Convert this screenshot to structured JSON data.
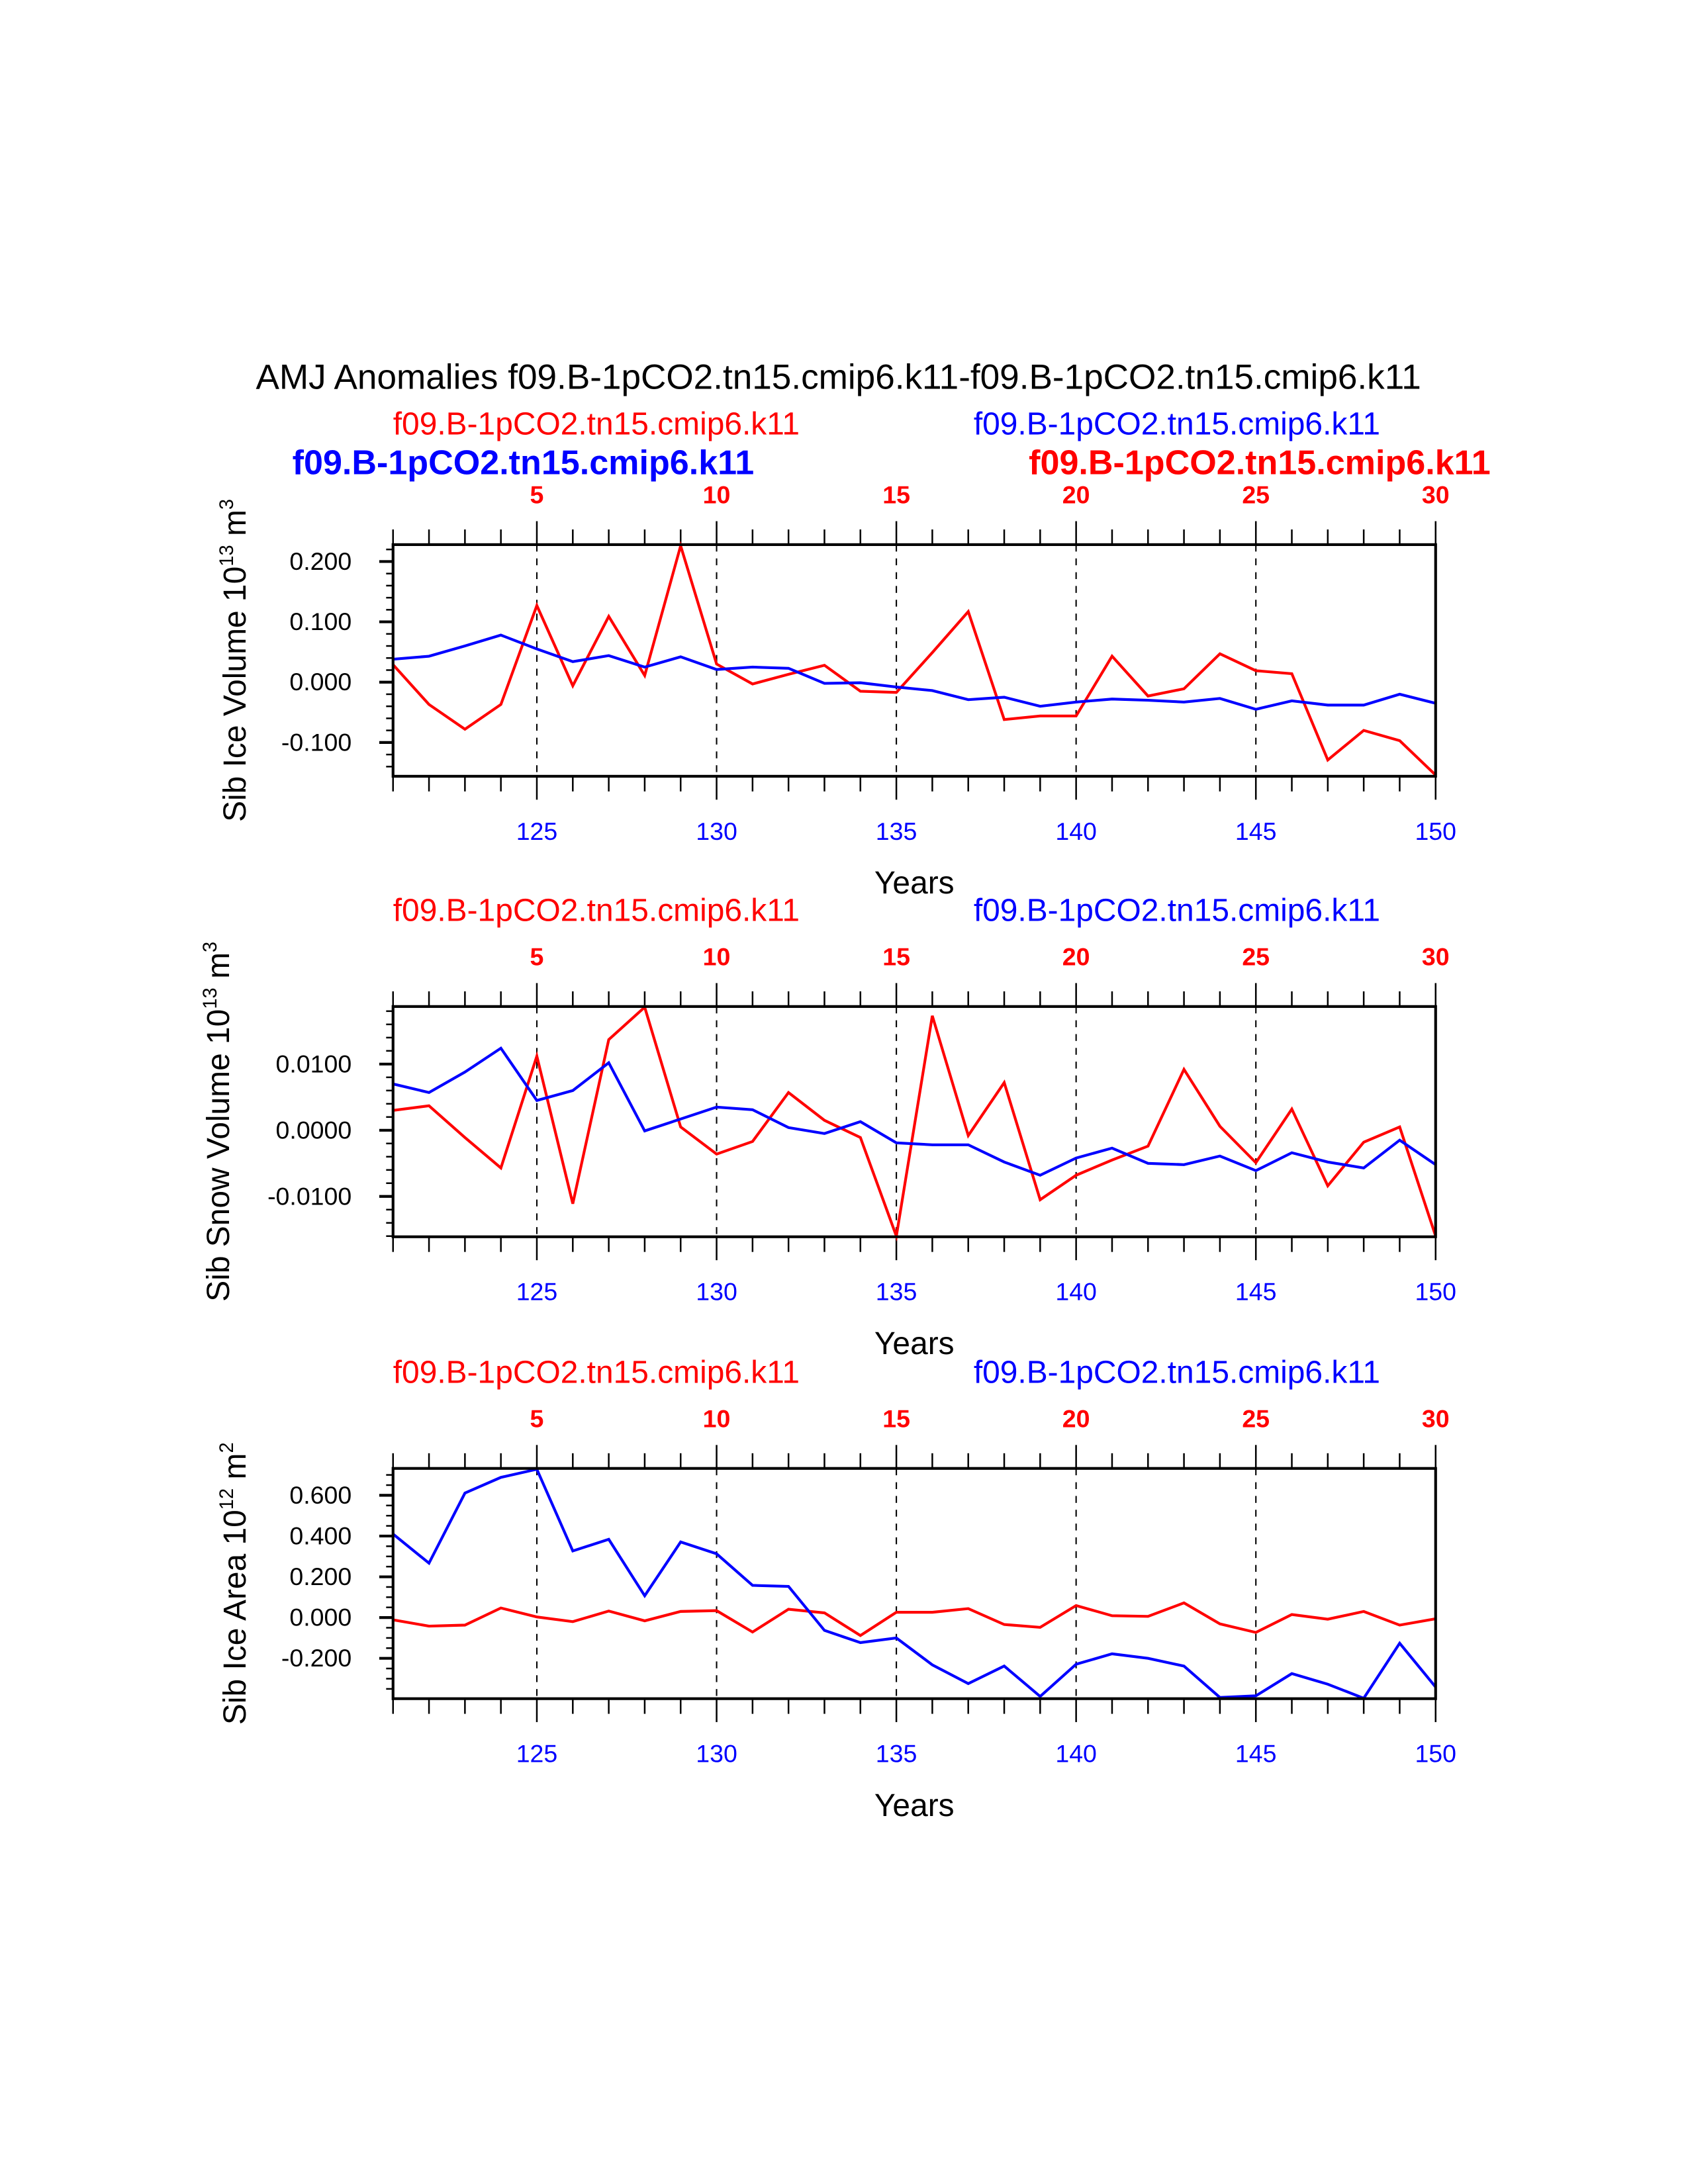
{
  "title": "AMJ Anomalies f09.B-1pCO2.tn15.cmip6.k11-f09.B-1pCO2.tn15.cmip6.k11",
  "colors": {
    "series_red": "#ff0000",
    "series_blue": "#0000ff",
    "axis": "#000000"
  },
  "overlay_labels": {
    "left_bold_blue": "f09.B-1pCO2.tn15.cmip6.k11",
    "right_bold_red": "f09.B-1pCO2.tn15.cmip6.k11"
  },
  "chart_data": [
    {
      "type": "line",
      "ylabel": "Sib Ice Volume 10",
      "ylabel_exp": "13",
      "ylabel_unit": " m",
      "ylabel_unit_exp": "3",
      "xlabel": "Years",
      "x": [
        121,
        122,
        123,
        124,
        125,
        126,
        127,
        128,
        129,
        130,
        131,
        132,
        133,
        134,
        135,
        136,
        137,
        138,
        139,
        140,
        141,
        142,
        143,
        144,
        145,
        146,
        147,
        148,
        149,
        150
      ],
      "xlim": [
        121,
        150
      ],
      "ylim": [
        -0.156,
        0.228
      ],
      "yticks": [
        0.2,
        0.1,
        0.0,
        -0.1
      ],
      "ytick_labels": [
        "0.200",
        "0.100",
        "0.000",
        "-0.100"
      ],
      "yminor_step": 0.02,
      "bottom_ticks": [
        125,
        130,
        135,
        140,
        145,
        150
      ],
      "bottom_tick_labels": [
        "125",
        "130",
        "135",
        "140",
        "145",
        "150"
      ],
      "top_ticks": [
        5,
        10,
        15,
        20,
        25,
        30
      ],
      "top_tick_labels": [
        "5",
        "10",
        "15",
        "20",
        "25",
        "30"
      ],
      "series": [
        {
          "name": "f09.B-1pCO2.tn15.cmip6.k11",
          "color": "#ff0000",
          "legend": "top-left",
          "values": [
            0.029,
            -0.037,
            -0.078,
            -0.037,
            0.127,
            -0.006,
            0.109,
            0.011,
            0.226,
            0.03,
            -0.003,
            0.013,
            0.028,
            -0.015,
            -0.017,
            0.049,
            0.117,
            -0.062,
            -0.056,
            -0.056,
            0.043,
            -0.023,
            -0.011,
            0.047,
            0.019,
            0.014,
            -0.129,
            -0.08,
            -0.097,
            -0.154
          ]
        },
        {
          "name": "f09.B-1pCO2.tn15.cmip6.k11",
          "color": "#0000ff",
          "legend": "top-right",
          "values": [
            0.038,
            0.043,
            0.06,
            0.078,
            0.055,
            0.034,
            0.044,
            0.025,
            0.042,
            0.021,
            0.025,
            0.023,
            -0.002,
            -0.001,
            -0.008,
            -0.014,
            -0.029,
            -0.025,
            -0.04,
            -0.033,
            -0.028,
            -0.03,
            -0.033,
            -0.027,
            -0.045,
            -0.031,
            -0.038,
            -0.038,
            -0.02,
            -0.035
          ]
        }
      ]
    },
    {
      "type": "line",
      "ylabel": "Sib Snow Volume 10",
      "ylabel_exp": "13",
      "ylabel_unit": " m",
      "ylabel_unit_exp": "3",
      "xlabel": "Years",
      "x": [
        121,
        122,
        123,
        124,
        125,
        126,
        127,
        128,
        129,
        130,
        131,
        132,
        133,
        134,
        135,
        136,
        137,
        138,
        139,
        140,
        141,
        142,
        143,
        144,
        145,
        146,
        147,
        148,
        149,
        150
      ],
      "xlim": [
        121,
        150
      ],
      "ylim": [
        -0.0161,
        0.0187
      ],
      "yticks": [
        0.01,
        0.0,
        -0.01
      ],
      "ytick_labels": [
        "0.0100",
        "0.0000",
        "-0.0100"
      ],
      "yminor_step": 0.002,
      "bottom_ticks": [
        125,
        130,
        135,
        140,
        145,
        150
      ],
      "bottom_tick_labels": [
        "125",
        "130",
        "135",
        "140",
        "145",
        "150"
      ],
      "top_ticks": [
        5,
        10,
        15,
        20,
        25,
        30
      ],
      "top_tick_labels": [
        "5",
        "10",
        "15",
        "20",
        "25",
        "30"
      ],
      "series": [
        {
          "name": "f09.B-1pCO2.tn15.cmip6.k11",
          "color": "#ff0000",
          "legend": "top-left",
          "values": [
            0.003,
            0.0037,
            -0.0011,
            -0.0057,
            0.0112,
            -0.0111,
            0.0137,
            0.0186,
            0.0005,
            -0.0036,
            -0.0017,
            0.0057,
            0.0015,
            -0.0011,
            -0.016,
            0.0173,
            -0.0008,
            0.0072,
            -0.0105,
            -0.0068,
            -0.0045,
            -0.0024,
            0.0092,
            0.0006,
            -0.0049,
            0.0032,
            -0.0084,
            -0.0018,
            0.0005,
            -0.016
          ]
        },
        {
          "name": "f09.B-1pCO2.tn15.cmip6.k11",
          "color": "#0000ff",
          "legend": "top-right",
          "values": [
            0.007,
            0.0057,
            0.0088,
            0.0124,
            0.0045,
            0.006,
            0.0102,
            -0.0001,
            0.0017,
            0.0035,
            0.0031,
            0.0004,
            -0.0005,
            0.0013,
            -0.0019,
            -0.0022,
            -0.0022,
            -0.0048,
            -0.0068,
            -0.0042,
            -0.0027,
            -0.005,
            -0.0052,
            -0.0039,
            -0.0061,
            -0.0034,
            -0.0048,
            -0.0057,
            -0.0015,
            -0.0052
          ]
        }
      ]
    },
    {
      "type": "line",
      "ylabel": "Sib Ice Area 10",
      "ylabel_exp": "12",
      "ylabel_unit": " m",
      "ylabel_unit_exp": "2",
      "xlabel": "Years",
      "x": [
        121,
        122,
        123,
        124,
        125,
        126,
        127,
        128,
        129,
        130,
        131,
        132,
        133,
        134,
        135,
        136,
        137,
        138,
        139,
        140,
        141,
        142,
        143,
        144,
        145,
        146,
        147,
        148,
        149,
        150
      ],
      "xlim": [
        121,
        150
      ],
      "ylim": [
        -0.398,
        0.732
      ],
      "yticks": [
        0.6,
        0.4,
        0.2,
        0.0,
        -0.2
      ],
      "ytick_labels": [
        "0.600",
        "0.400",
        "0.200",
        "0.000",
        "-0.200"
      ],
      "yminor_step": 0.05,
      "bottom_ticks": [
        125,
        130,
        135,
        140,
        145,
        150
      ],
      "bottom_tick_labels": [
        "125",
        "130",
        "135",
        "140",
        "145",
        "150"
      ],
      "top_ticks": [
        5,
        10,
        15,
        20,
        25,
        30
      ],
      "top_tick_labels": [
        "5",
        "10",
        "15",
        "20",
        "25",
        "30"
      ],
      "series": [
        {
          "name": "f09.B-1pCO2.tn15.cmip6.k11",
          "color": "#ff0000",
          "legend": "top-left",
          "values": [
            -0.011,
            -0.042,
            -0.037,
            0.047,
            0.003,
            -0.02,
            0.032,
            -0.016,
            0.03,
            0.034,
            -0.071,
            0.041,
            0.023,
            -0.088,
            0.026,
            0.026,
            0.044,
            -0.034,
            -0.048,
            0.059,
            0.009,
            0.006,
            0.072,
            -0.031,
            -0.073,
            0.015,
            -0.008,
            0.03,
            -0.037,
            -0.006
          ]
        },
        {
          "name": "f09.B-1pCO2.tn15.cmip6.k11",
          "color": "#0000ff",
          "legend": "top-right",
          "values": [
            0.41,
            0.267,
            0.611,
            0.688,
            0.728,
            0.327,
            0.384,
            0.107,
            0.371,
            0.313,
            0.158,
            0.153,
            -0.063,
            -0.123,
            -0.1,
            -0.232,
            -0.324,
            -0.238,
            -0.387,
            -0.229,
            -0.178,
            -0.2,
            -0.238,
            -0.392,
            -0.384,
            -0.275,
            -0.327,
            -0.396,
            -0.126,
            -0.341
          ]
        }
      ]
    }
  ]
}
